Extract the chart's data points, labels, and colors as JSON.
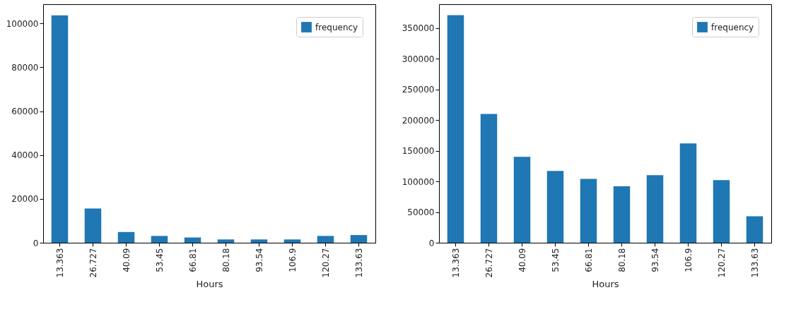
{
  "chart_data": [
    {
      "type": "bar",
      "xlabel": "Hours",
      "categories": [
        "13.363",
        "26.727",
        "40.09",
        "53.45",
        "66.81",
        "80.18",
        "93.54",
        "106.9",
        "120.27",
        "133.63"
      ],
      "series": [
        {
          "name": "frequency",
          "color": "#1f77b4",
          "values": [
            103700,
            15600,
            4900,
            3100,
            2400,
            1500,
            1500,
            1500,
            3100,
            3500
          ]
        }
      ],
      "ylim": [
        0,
        108800
      ],
      "yticks": [
        0,
        20000,
        40000,
        60000,
        80000,
        100000
      ],
      "grid": false,
      "legend": "top right"
    },
    {
      "type": "bar",
      "xlabel": "Hours",
      "categories": [
        "13.363",
        "26.727",
        "40.09",
        "53.45",
        "66.81",
        "80.18",
        "93.54",
        "106.9",
        "120.27",
        "133.63"
      ],
      "series": [
        {
          "name": "frequency",
          "color": "#1f77b4",
          "values": [
            371000,
            210000,
            140000,
            117000,
            104000,
            92000,
            110000,
            162000,
            102000,
            43000
          ]
        }
      ],
      "ylim": [
        0,
        388700
      ],
      "yticks": [
        0,
        50000,
        100000,
        150000,
        200000,
        250000,
        300000,
        350000
      ],
      "grid": false,
      "legend": "top right"
    }
  ]
}
